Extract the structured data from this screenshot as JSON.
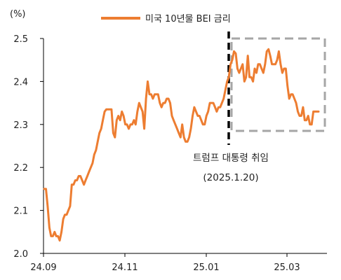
{
  "chart_data": {
    "type": "line",
    "title": "",
    "unit_label": "(%)",
    "xlabel": "",
    "ylabel": "",
    "ylim": [
      2.0,
      2.5
    ],
    "yticks": [
      "2.0",
      "2.1",
      "2.2",
      "2.3",
      "2.4",
      "2.5"
    ],
    "xtick_labels": [
      "24.09",
      "24.11",
      "25.01",
      "25.03"
    ],
    "legend_position": "top-center",
    "grid": false,
    "colors": {
      "series": "#ed7d31",
      "highlight_box": "#a6a6a6",
      "event_line": "#000000",
      "axis": "#000000"
    },
    "series": [
      {
        "name": "미국 10년물 BEI 금리",
        "values": [
          2.15,
          2.15,
          2.11,
          2.06,
          2.04,
          2.04,
          2.05,
          2.04,
          2.04,
          2.03,
          2.05,
          2.08,
          2.09,
          2.09,
          2.1,
          2.11,
          2.16,
          2.16,
          2.17,
          2.17,
          2.18,
          2.18,
          2.17,
          2.16,
          2.17,
          2.18,
          2.19,
          2.2,
          2.21,
          2.23,
          2.24,
          2.26,
          2.28,
          2.29,
          2.31,
          2.33,
          2.335,
          2.335,
          2.335,
          2.335,
          2.28,
          2.27,
          2.31,
          2.32,
          2.31,
          2.33,
          2.32,
          2.3,
          2.3,
          2.29,
          2.3,
          2.3,
          2.31,
          2.3,
          2.33,
          2.35,
          2.34,
          2.33,
          2.29,
          2.36,
          2.4,
          2.37,
          2.37,
          2.36,
          2.37,
          2.37,
          2.37,
          2.35,
          2.34,
          2.35,
          2.35,
          2.36,
          2.36,
          2.35,
          2.32,
          2.31,
          2.3,
          2.29,
          2.28,
          2.27,
          2.3,
          2.27,
          2.26,
          2.26,
          2.27,
          2.29,
          2.32,
          2.34,
          2.33,
          2.32,
          2.32,
          2.31,
          2.3,
          2.3,
          2.32,
          2.33,
          2.35,
          2.35,
          2.35,
          2.34,
          2.33,
          2.34,
          2.34,
          2.35,
          2.36,
          2.38,
          2.4,
          2.41,
          2.44,
          2.45,
          2.47,
          2.465,
          2.43,
          2.42,
          2.43,
          2.44,
          2.4,
          2.41,
          2.46,
          2.41,
          2.41,
          2.4,
          2.43,
          2.42,
          2.44,
          2.44,
          2.43,
          2.42,
          2.44,
          2.47,
          2.475,
          2.46,
          2.44,
          2.44,
          2.44,
          2.45,
          2.47,
          2.44,
          2.42,
          2.43,
          2.43,
          2.39,
          2.36,
          2.37,
          2.37,
          2.36,
          2.35,
          2.33,
          2.32,
          2.32,
          2.34,
          2.31,
          2.31,
          2.32,
          2.3,
          2.3,
          2.33,
          2.33,
          2.33,
          2.33
        ]
      }
    ],
    "event": {
      "label": "트럼프 대통령 취임",
      "date_label": "(2025.1.20)"
    }
  }
}
